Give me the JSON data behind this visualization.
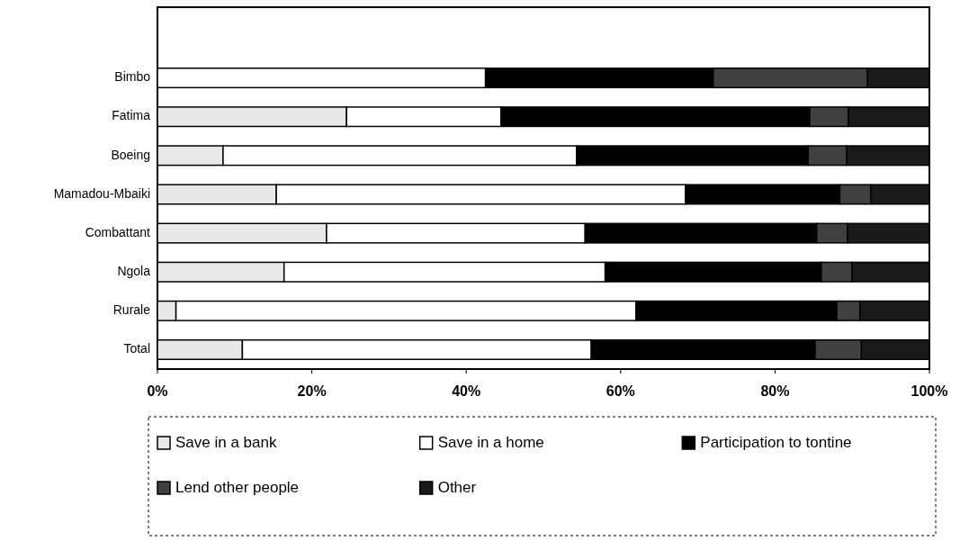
{
  "chart_data": {
    "type": "bar",
    "orientation": "horizontal",
    "stacked": true,
    "categories": [
      "Bimbo",
      "Fatima",
      "Boeing",
      "Mamadou-Mbaiki",
      "Combattant",
      "Ngola",
      "Rurale",
      "Total"
    ],
    "series": [
      {
        "name": "Save in a bank",
        "color": "#e8e8e8",
        "values": [
          0,
          24.5,
          8.5,
          15.4,
          21.9,
          16.4,
          2.4,
          11
        ]
      },
      {
        "name": "Save in a home",
        "color": "#ffffff",
        "values": [
          42.5,
          20,
          45.8,
          53,
          33.5,
          41.6,
          59.6,
          45.2
        ]
      },
      {
        "name": "Participation to tontine",
        "color": "#000000",
        "values": [
          29.5,
          40,
          30,
          20,
          30,
          28,
          26,
          29
        ]
      },
      {
        "name": "Lend other people",
        "color": "#404040",
        "values": [
          20,
          5,
          5,
          4,
          4,
          4,
          3,
          6
        ]
      },
      {
        "name": "Other",
        "color": "#1a1a1a",
        "values": [
          8,
          10.5,
          10.7,
          7.6,
          10.6,
          10,
          9,
          8.8
        ]
      }
    ],
    "xlim": [
      0,
      100
    ],
    "xticks": [
      {
        "value": 0,
        "label": "0%"
      },
      {
        "value": 20,
        "label": "20%"
      },
      {
        "value": 40,
        "label": "40%"
      },
      {
        "value": 60,
        "label": "60%"
      },
      {
        "value": 80,
        "label": "80%"
      },
      {
        "value": 100,
        "label": "100%"
      }
    ],
    "legend": "bottom"
  }
}
